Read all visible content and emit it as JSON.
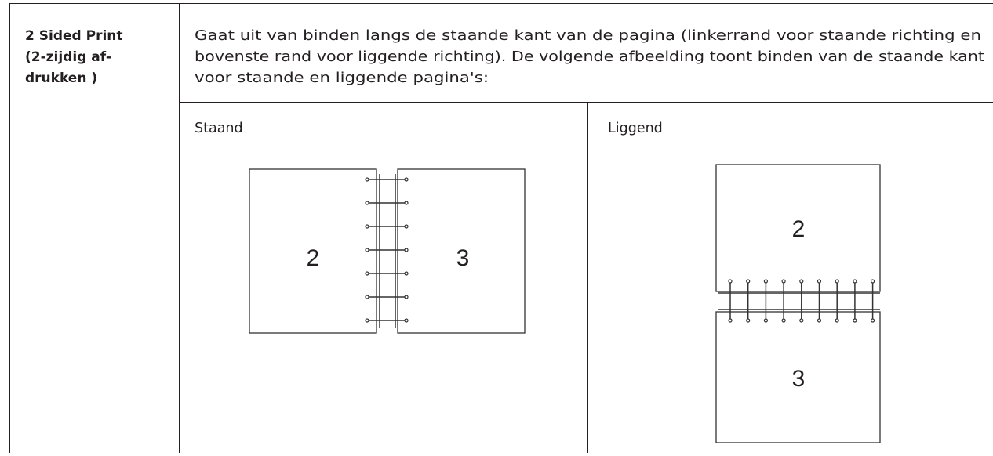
{
  "table": {
    "label_lines": [
      "2 Sided Print",
      "(2-zijdig af-",
      "drukken )"
    ],
    "description_lines": [
      "Gaat uit van binden langs de staande kant van de pagina (linkerrand voor staande richting en",
      "bovenste rand voor liggende richting). De volgende afbeelding toont binden van de staande kant",
      "voor staande en liggende pagina's:"
    ],
    "portrait": {
      "title": "Staand",
      "left_page": "2",
      "right_page": "3"
    },
    "landscape": {
      "title": "Liggend",
      "top_page": "2",
      "bottom_page": "3"
    }
  }
}
